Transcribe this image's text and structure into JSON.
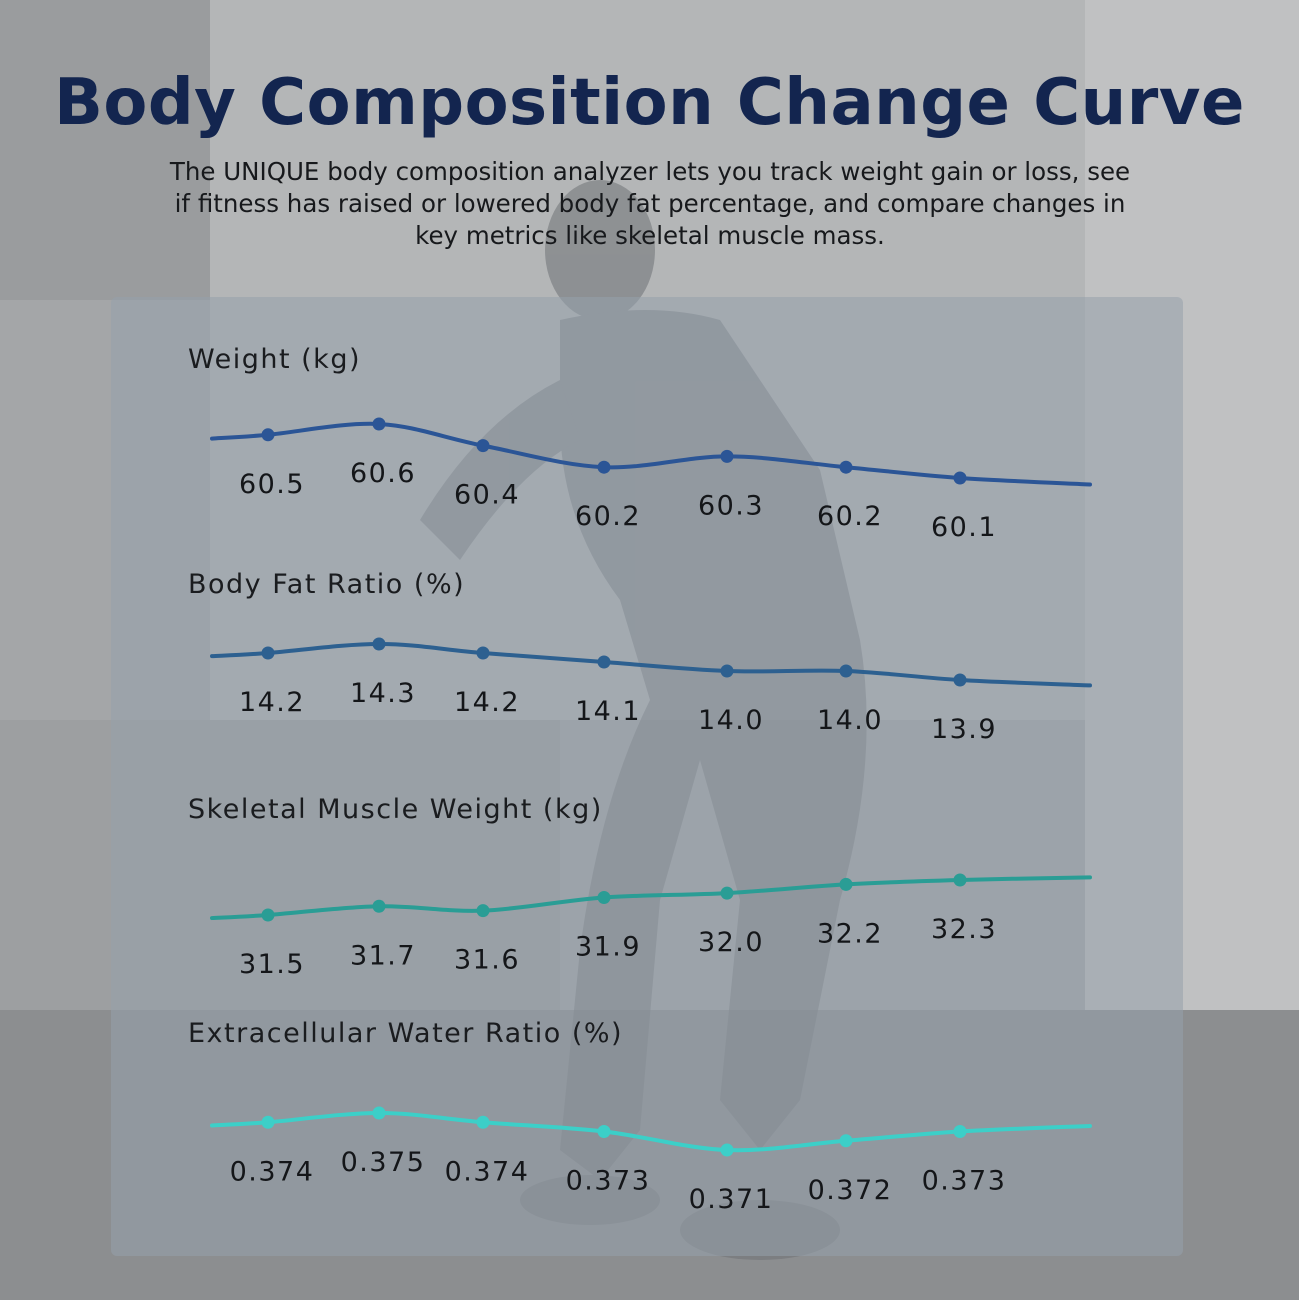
{
  "header": {
    "title": "Body Composition Change Curve",
    "subtitle": "The UNIQUE body composition analyzer lets you track weight gain or loss, see if fitness has raised or lowered body fat percentage, and compare changes in key metrics like skeletal muscle mass."
  },
  "colors": {
    "title": "#13254f",
    "weight_line": "#2b5596",
    "fat_line": "#2d6090",
    "muscle_line": "#2a9d95",
    "water_line": "#3ccfc8"
  },
  "chart_data": [
    {
      "type": "line",
      "title": "Weight (kg)",
      "x": [
        1,
        2,
        3,
        4,
        5,
        6,
        7
      ],
      "values": [
        60.5,
        60.6,
        60.4,
        60.2,
        60.3,
        60.2,
        60.1
      ],
      "value_labels": [
        "60.5",
        "60.6",
        "60.4",
        "60.2",
        "60.3",
        "60.2",
        "60.1"
      ],
      "xlabel": "",
      "ylabel": "",
      "grid": false
    },
    {
      "type": "line",
      "title": "Body Fat Ratio (%)",
      "x": [
        1,
        2,
        3,
        4,
        5,
        6,
        7
      ],
      "values": [
        14.2,
        14.3,
        14.2,
        14.1,
        14.0,
        14.0,
        13.9
      ],
      "value_labels": [
        "14.2",
        "14.3",
        "14.2",
        "14.1",
        "14.0",
        "14.0",
        "13.9"
      ],
      "xlabel": "",
      "ylabel": "",
      "grid": false
    },
    {
      "type": "line",
      "title": "Skeletal Muscle Weight (kg)",
      "x": [
        1,
        2,
        3,
        4,
        5,
        6,
        7
      ],
      "values": [
        31.5,
        31.7,
        31.6,
        31.9,
        32.0,
        32.2,
        32.3
      ],
      "value_labels": [
        "31.5",
        "31.7",
        "31.6",
        "31.9",
        "32.0",
        "32.2",
        "32.3"
      ],
      "xlabel": "",
      "ylabel": "",
      "grid": false
    },
    {
      "type": "line",
      "title": "Extracellular Water Ratio (%)",
      "x": [
        1,
        2,
        3,
        4,
        5,
        6,
        7
      ],
      "values": [
        0.374,
        0.375,
        0.374,
        0.373,
        0.371,
        0.372,
        0.373
      ],
      "value_labels": [
        "0.374",
        "0.375",
        "0.374",
        "0.373",
        "0.371",
        "0.372",
        "0.373"
      ],
      "xlabel": "",
      "ylabel": "",
      "grid": false
    }
  ]
}
